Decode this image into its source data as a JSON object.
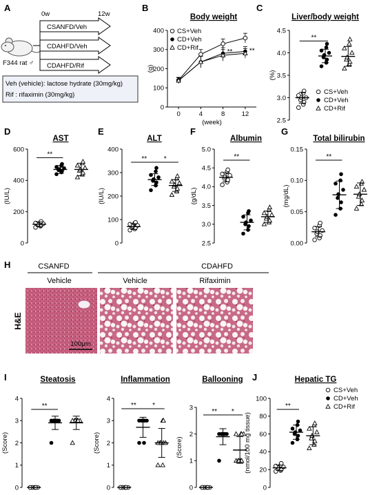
{
  "panel_labels": {
    "A": "A",
    "B": "B",
    "C": "C",
    "D": "D",
    "E": "E",
    "F": "F",
    "G": "G",
    "H": "H",
    "I": "I",
    "J": "J"
  },
  "panel_a": {
    "time_start": "0w",
    "time_end": "12w",
    "animal": "F344 rat ♂",
    "groups": [
      "CSANFD/Veh",
      "CDAHFD/Veh",
      "CDAHFD/Rif"
    ],
    "notes": [
      "Veh (vehicle): lactose hydrate (30mg/kg)",
      "Rif : rifaximin (30mg/kg)"
    ]
  },
  "legend": [
    "CS+Veh",
    "CD+Veh",
    "CD+Rif"
  ],
  "significance": {
    "double": "**",
    "single": "*"
  },
  "chart_data": [
    {
      "id": "B",
      "type": "line",
      "title": "Body weight",
      "xlabel": "(week)",
      "ylabel": "(g)",
      "x": [
        0,
        4,
        8,
        12
      ],
      "xticks": [
        "0",
        "4",
        "8",
        "12"
      ],
      "ylim": [
        0,
        400
      ],
      "yticks": [
        "0",
        "100",
        "200",
        "300",
        "400"
      ],
      "series": [
        {
          "name": "CS+Veh",
          "values": [
            140,
            275,
            330,
            360
          ],
          "err": [
            15,
            25,
            25,
            25
          ]
        },
        {
          "name": "CD+Veh",
          "values": [
            138,
            235,
            280,
            290
          ],
          "err": [
            15,
            30,
            30,
            25
          ]
        },
        {
          "name": "CD+Rif",
          "values": [
            138,
            235,
            270,
            280
          ],
          "err": [
            15,
            30,
            30,
            25
          ]
        }
      ]
    },
    {
      "id": "C",
      "type": "scatter",
      "title": "Liver/body weight",
      "ylabel": "(%)",
      "ylim": [
        2.5,
        4.5
      ],
      "yticks": [
        "2.5",
        "3.0",
        "3.5",
        "4.0",
        "4.5"
      ],
      "groups": [
        "CS+Veh",
        "CD+Veh",
        "CD+Rif"
      ],
      "means": [
        3.0,
        3.93,
        3.92
      ],
      "sd": [
        0.12,
        0.15,
        0.22
      ],
      "points": [
        [
          2.78,
          2.85,
          2.9,
          2.95,
          3.0,
          3.0,
          3.05,
          3.1,
          3.15
        ],
        [
          3.7,
          3.78,
          3.85,
          3.9,
          3.95,
          4.0,
          4.05,
          4.12,
          4.2
        ],
        [
          3.65,
          3.75,
          3.8,
          3.85,
          3.9,
          4.0,
          4.1,
          4.2,
          4.3
        ]
      ]
    },
    {
      "id": "D",
      "type": "scatter",
      "title": "AST",
      "ylabel": "(IU/L)",
      "ylim": [
        0,
        600
      ],
      "yticks": [
        "0",
        "200",
        "400",
        "600"
      ],
      "groups": [
        "CS+Veh",
        "CD+Veh",
        "CD+Rif"
      ],
      "means": [
        120,
        470,
        470
      ],
      "sd": [
        15,
        25,
        40
      ],
      "points": [
        [
          100,
          108,
          112,
          118,
          120,
          124,
          128,
          132,
          138
        ],
        [
          440,
          452,
          460,
          466,
          472,
          478,
          486,
          494,
          505
        ],
        [
          420,
          438,
          450,
          462,
          470,
          480,
          495,
          510,
          520
        ]
      ]
    },
    {
      "id": "E",
      "type": "scatter",
      "title": "ALT",
      "ylabel": "(IU/L)",
      "ylim": [
        0,
        400
      ],
      "yticks": [
        "0",
        "100",
        "200",
        "300",
        "400"
      ],
      "groups": [
        "CS+Veh",
        "CD+Veh",
        "CD+Rif"
      ],
      "means": [
        70,
        270,
        245
      ],
      "sd": [
        12,
        25,
        25
      ],
      "points": [
        [
          55,
          60,
          65,
          68,
          72,
          75,
          80,
          85,
          88
        ],
        [
          225,
          245,
          258,
          265,
          272,
          280,
          290,
          305,
          320
        ],
        [
          205,
          220,
          232,
          240,
          248,
          255,
          262,
          275,
          285
        ]
      ]
    },
    {
      "id": "F",
      "type": "scatter",
      "title": "Albumin",
      "ylabel": "(g/dL)",
      "ylim": [
        2.5,
        5.0
      ],
      "yticks": [
        "2.5",
        "3.0",
        "3.5",
        "4.0",
        "4.5",
        "5.0"
      ],
      "groups": [
        "CS+Veh",
        "CD+Veh",
        "CD+Rif"
      ],
      "means": [
        4.25,
        3.05,
        3.2
      ],
      "sd": [
        0.12,
        0.2,
        0.15
      ],
      "points": [
        [
          4.05,
          4.12,
          4.18,
          4.22,
          4.26,
          4.3,
          4.34,
          4.4,
          4.45
        ],
        [
          2.75,
          2.85,
          2.95,
          3.0,
          3.05,
          3.1,
          3.2,
          3.3,
          3.35
        ],
        [
          3.0,
          3.05,
          3.1,
          3.15,
          3.2,
          3.25,
          3.3,
          3.38,
          3.45
        ]
      ]
    },
    {
      "id": "G",
      "type": "scatter",
      "title": "Total bilirubin",
      "ylabel": "(mg/dL)",
      "ylim": [
        0,
        0.15
      ],
      "yticks": [
        "0.00",
        "0.05",
        "0.10",
        "0.15"
      ],
      "groups": [
        "CS+Veh",
        "CD+Veh",
        "CD+Rif"
      ],
      "means": [
        0.018,
        0.077,
        0.078
      ],
      "sd": [
        0.008,
        0.022,
        0.018
      ],
      "points": [
        [
          0.005,
          0.008,
          0.012,
          0.015,
          0.018,
          0.02,
          0.024,
          0.028,
          0.032
        ],
        [
          0.045,
          0.055,
          0.065,
          0.072,
          0.078,
          0.085,
          0.095,
          0.1,
          0.11
        ],
        [
          0.055,
          0.062,
          0.068,
          0.074,
          0.078,
          0.085,
          0.09,
          0.095,
          0.098
        ]
      ]
    },
    {
      "id": "I1",
      "type": "scatter",
      "title": "Steatosis",
      "ylabel": "(Score)",
      "ylim": [
        0,
        4
      ],
      "yticks": [
        "0",
        "1",
        "2",
        "3",
        "4"
      ],
      "groups": [
        "CS+Veh",
        "CD+Veh",
        "CD+Rif"
      ],
      "means": [
        0,
        2.9,
        2.9
      ],
      "sd": [
        0,
        0.3,
        0.3
      ],
      "points": [
        [
          0,
          0,
          0,
          0,
          0,
          0,
          0,
          0,
          0
        ],
        [
          2,
          3,
          3,
          3,
          3,
          3,
          3,
          3,
          3
        ],
        [
          2,
          3,
          3,
          3,
          3,
          3,
          3,
          3,
          3
        ]
      ]
    },
    {
      "id": "I2",
      "type": "scatter",
      "title": "Inflammation",
      "ylabel": "(Score)",
      "ylim": [
        0,
        4
      ],
      "yticks": [
        "0",
        "1",
        "2",
        "3",
        "4"
      ],
      "groups": [
        "CS+Veh",
        "CD+Veh",
        "CD+Rif"
      ],
      "means": [
        0,
        2.7,
        2.0
      ],
      "sd": [
        0,
        0.45,
        0.65
      ],
      "points": [
        [
          0,
          0,
          0,
          0,
          0,
          0,
          0,
          0,
          0
        ],
        [
          2,
          2,
          3,
          3,
          3,
          3,
          3,
          3,
          3
        ],
        [
          1,
          1,
          2,
          2,
          2,
          2,
          2,
          3,
          3
        ]
      ]
    },
    {
      "id": "I3",
      "type": "scatter",
      "title": "Ballooning",
      "ylabel": "(Score)",
      "ylim": [
        0,
        3
      ],
      "yticks": [
        "0",
        "1",
        "2",
        "3"
      ],
      "groups": [
        "CS+Veh",
        "CD+Veh",
        "CD+Rif"
      ],
      "means": [
        0,
        1.9,
        1.4
      ],
      "sd": [
        0,
        0.3,
        0.5
      ],
      "points": [
        [
          0,
          0,
          0,
          0,
          0,
          0,
          0,
          0,
          0
        ],
        [
          1,
          2,
          2,
          2,
          2,
          2,
          2,
          2,
          2
        ],
        [
          1,
          1,
          1,
          1,
          1,
          2,
          2,
          2,
          2
        ]
      ]
    },
    {
      "id": "J",
      "type": "scatter",
      "title": "Hepatic TG",
      "ylabel": "(nmol/100 mg tissue)",
      "ylim": [
        0,
        100
      ],
      "yticks": [
        "0",
        "20",
        "40",
        "60",
        "80",
        "100"
      ],
      "groups": [
        "CS+Veh",
        "CD+Veh",
        "CD+Rif"
      ],
      "means": [
        22,
        62,
        58
      ],
      "sd": [
        3,
        8,
        10
      ],
      "points": [
        [
          18,
          19,
          20,
          21,
          22,
          23,
          24,
          25,
          27
        ],
        [
          50,
          54,
          58,
          60,
          62,
          64,
          66,
          70,
          74
        ],
        [
          44,
          48,
          52,
          55,
          58,
          62,
          66,
          70,
          72
        ]
      ]
    }
  ],
  "histology": {
    "group_left": "CSANFD",
    "group_right": "CDAHFD",
    "columns": [
      "Vehicle",
      "Vehicle",
      "Rifaximin"
    ],
    "stain": "H&E",
    "scale_bar": "100μm"
  }
}
